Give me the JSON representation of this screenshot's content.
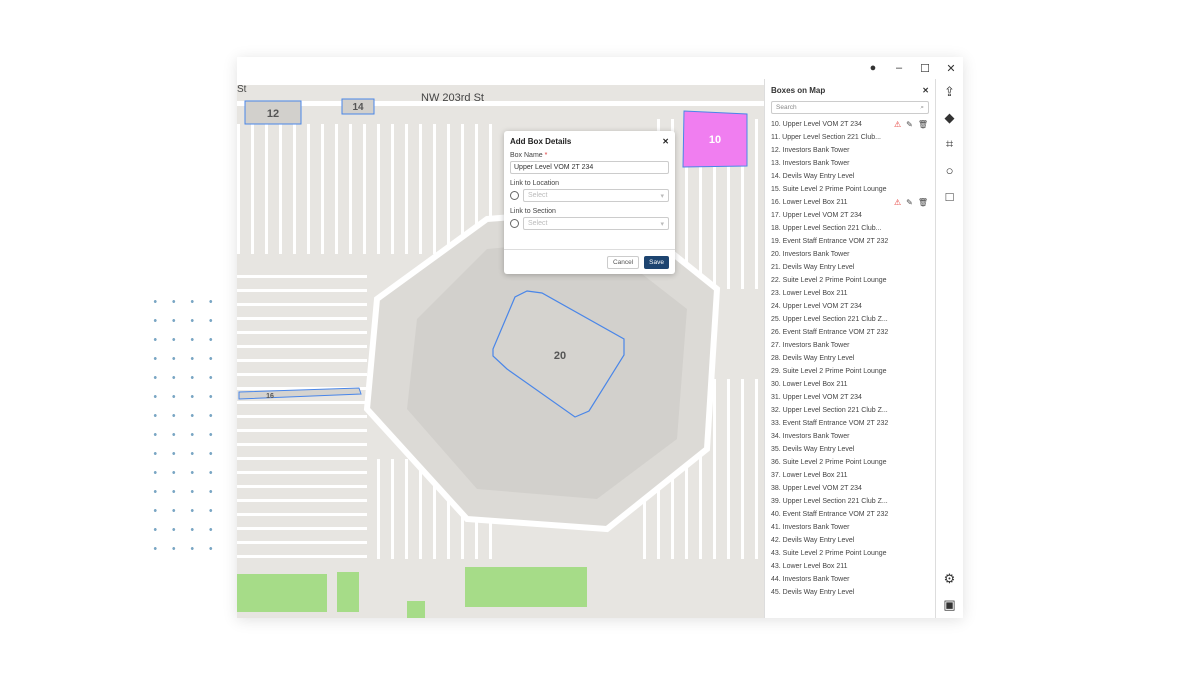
{
  "window": {
    "controls": {
      "account": "account-icon",
      "minimize": "–",
      "maximize": "☐",
      "close": "✕"
    }
  },
  "map": {
    "street_label": "NW 203rd St",
    "street_label_partial": "St",
    "boxes": [
      {
        "label": "12",
        "color": "#4a86e8"
      },
      {
        "label": "14",
        "color": "#4a86e8"
      },
      {
        "label": "10",
        "color": "#f07ef0"
      },
      {
        "label": "20",
        "color": "#4a86e8"
      },
      {
        "label": "16",
        "color": "#4a86e8"
      }
    ]
  },
  "modal": {
    "title": "Add Box Details",
    "box_name_label": "Box Name",
    "required_mark": "*",
    "box_name_value": "Upper Level VOM 2T 234",
    "link_location_label": "Link to Location",
    "link_location_placeholder": "Select",
    "link_section_label": "Link to Section",
    "link_section_placeholder": "Select",
    "cancel": "Cancel",
    "save": "Save",
    "save_color": "#1d4470"
  },
  "panel": {
    "title": "Boxes on Map",
    "search_placeholder": "Search",
    "items": [
      {
        "label": "10. Upper Level VOM 2T 234",
        "warning": true
      },
      {
        "label": "11. Upper Level Section 221 Club..."
      },
      {
        "label": "12. Investors Bank Tower"
      },
      {
        "label": "13. Investors Bank Tower"
      },
      {
        "label": "14. Devils Way Entry Level"
      },
      {
        "label": "15. Suite Level 2 Prime Point Lounge"
      },
      {
        "label": "16. Lower Level Box 211",
        "warning": true
      },
      {
        "label": "17. Upper Level VOM 2T 234"
      },
      {
        "label": "18. Upper Level Section 221 Club..."
      },
      {
        "label": "19. Event Staff Entrance VOM 2T 232"
      },
      {
        "label": "20. Investors Bank Tower"
      },
      {
        "label": "21. Devils Way Entry Level"
      },
      {
        "label": "22. Suite Level 2 Prime Point Lounge"
      },
      {
        "label": "23. Lower Level Box 211"
      },
      {
        "label": "24. Upper Level VOM 2T 234"
      },
      {
        "label": "25. Upper Level Section 221 Club Z..."
      },
      {
        "label": "26. Event Staff Entrance VOM 2T 232"
      },
      {
        "label": "27. Investors Bank Tower"
      },
      {
        "label": "28. Devils Way Entry Level"
      },
      {
        "label": "29. Suite Level 2 Prime Point Lounge"
      },
      {
        "label": "30. Lower Level Box 211"
      },
      {
        "label": "31. Upper Level VOM 2T 234"
      },
      {
        "label": "32. Upper Level Section 221 Club Z..."
      },
      {
        "label": "33. Event Staff Entrance VOM 2T 232"
      },
      {
        "label": "34. Investors Bank Tower"
      },
      {
        "label": "35. Devils Way Entry Level"
      },
      {
        "label": "36. Suite Level 2 Prime Point Lounge"
      },
      {
        "label": "37. Lower Level Box 211"
      },
      {
        "label": "38. Upper Level VOM 2T 234"
      },
      {
        "label": "39. Upper Level Section 221 Club Z..."
      },
      {
        "label": "40. Event Staff Entrance VOM 2T 232"
      },
      {
        "label": "41. Investors Bank Tower"
      },
      {
        "label": "42. Devils Way Entry Level"
      },
      {
        "label": "43. Suite Level 2 Prime Point Lounge"
      },
      {
        "label": "43. Lower Level Box 211"
      },
      {
        "label": "44. Investors Bank Tower"
      },
      {
        "label": "45. Devils Way Entry Level"
      }
    ]
  },
  "toolbar": [
    "upload-icon",
    "location-pin-icon",
    "polygon-icon",
    "circle-icon",
    "square-icon",
    "settings-icon",
    "save-icon"
  ]
}
